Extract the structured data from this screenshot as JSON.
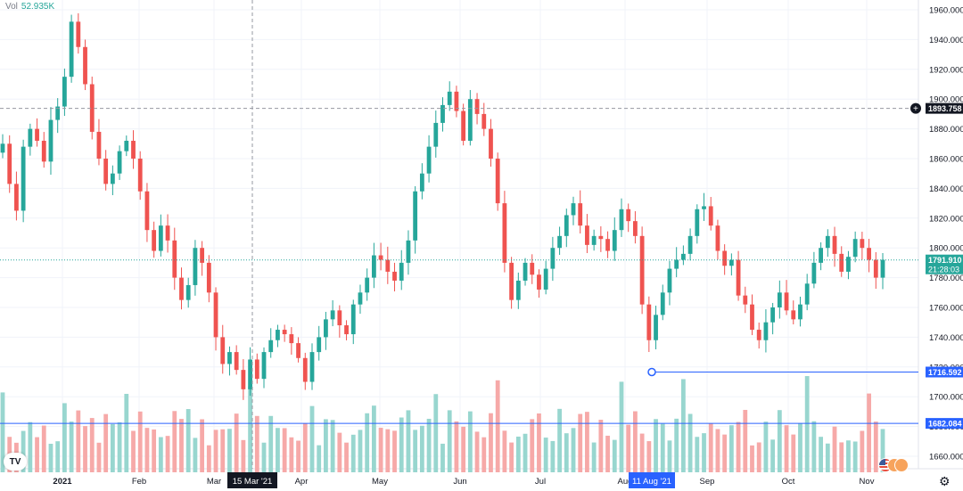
{
  "header": {
    "vol_label": "Vol",
    "vol_value": "52.935K"
  },
  "colors": {
    "up": "#26a69a",
    "down": "#ef5350",
    "up_vol": "#98d6cf",
    "down_vol": "#f6a9a8",
    "line": "#2962ff",
    "axis_text": "#131722",
    "grid": "#f0f3fa"
  },
  "icons": {
    "logo": "tradingview-logo-icon",
    "settings": "gear-icon",
    "flag": "us-flag-icon"
  },
  "chart_data": {
    "type": "candlestick",
    "title": "",
    "xlabel": "",
    "ylabel": "",
    "ylim": [
      1648,
      1964
    ],
    "y_ticks": [
      1660,
      1680,
      1700,
      1720,
      1740,
      1760,
      1780,
      1800,
      1820,
      1840,
      1860,
      1880,
      1900,
      1920,
      1940,
      1960
    ],
    "y_tick_labels": [
      "1660.000",
      "1680.000",
      "1700.000",
      "1720.000",
      "1740.000",
      "1760.000",
      "1780.000",
      "1800.000",
      "1820.000",
      "1840.000",
      "1860.000",
      "1880.000",
      "1900.000",
      "1920.000",
      "1940.000",
      "1960.000"
    ],
    "x_tick_labels": [
      "2021",
      "Feb",
      "Mar",
      "Apr",
      "May",
      "Jun",
      "Jul",
      "Aug",
      "Sep",
      "Oct",
      "Nov"
    ],
    "close_path": [
      1870,
      1843,
      1825,
      1868,
      1880,
      1872,
      1858,
      1886,
      1895,
      1915,
      1952,
      1935,
      1910,
      1878,
      1860,
      1843,
      1850,
      1865,
      1872,
      1860,
      1838,
      1812,
      1798,
      1815,
      1805,
      1780,
      1765,
      1775,
      1800,
      1790,
      1770,
      1740,
      1722,
      1730,
      1718,
      1705,
      1725,
      1712,
      1730,
      1738,
      1745,
      1742,
      1736,
      1726,
      1710,
      1730,
      1740,
      1752,
      1758,
      1748,
      1742,
      1762,
      1770,
      1780,
      1795,
      1792,
      1784,
      1778,
      1790,
      1805,
      1838,
      1850,
      1868,
      1884,
      1896,
      1905,
      1892,
      1872,
      1900,
      1890,
      1880,
      1860,
      1830,
      1790,
      1765,
      1778,
      1790,
      1782,
      1772,
      1786,
      1800,
      1808,
      1822,
      1830,
      1815,
      1802,
      1808,
      1806,
      1798,
      1812,
      1826,
      1818,
      1808,
      1762,
      1738,
      1755,
      1770,
      1786,
      1792,
      1796,
      1808,
      1826,
      1828,
      1815,
      1798,
      1788,
      1792,
      1768,
      1762,
      1745,
      1738,
      1750,
      1760,
      1770,
      1758,
      1752,
      1762,
      1776,
      1790,
      1800,
      1808,
      1796,
      1784,
      1794,
      1806,
      1800,
      1792,
      1780,
      1792
    ],
    "close_ylim": [
      1648,
      1964
    ],
    "last_price": "1791.910",
    "countdown": "21:28:03",
    "horizontal_lines": [
      {
        "value": 1893.758,
        "label": "1893.758",
        "style": "dashed"
      },
      {
        "value": 1716.592,
        "label": "1716.592",
        "style": "solid"
      },
      {
        "value": 1682.084,
        "label": "1682.084",
        "style": "solid"
      }
    ],
    "crosshair_x_label": "15 Mar '21",
    "highlight_x_label": "11 Aug '21",
    "volume_indicator": {
      "name": "Vol",
      "last": "52.935K"
    }
  }
}
